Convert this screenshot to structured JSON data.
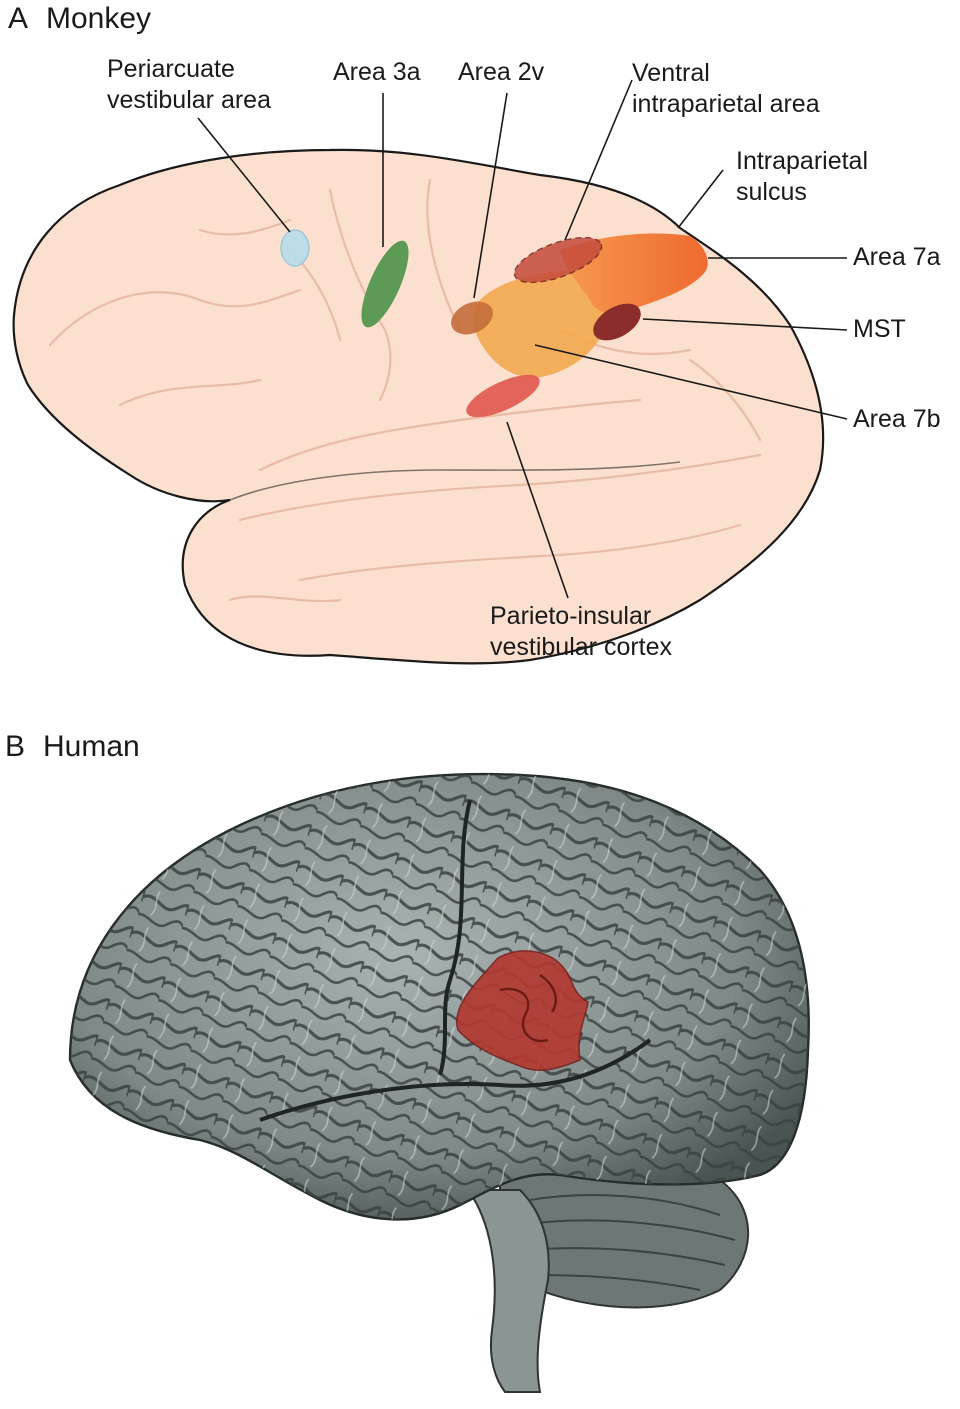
{
  "panel_a": {
    "letter": "A",
    "title": "Monkey",
    "labels": {
      "periarcuate": [
        "Periarcuate",
        "vestibular area"
      ],
      "area3a": "Area 3a",
      "area2v": "Area 2v",
      "ventral_ip": [
        "Ventral",
        "intraparietal area"
      ],
      "ip_sulcus": [
        "Intraparietal",
        "sulcus"
      ],
      "area7a": "Area 7a",
      "mst": "MST",
      "area7b": "Area 7b",
      "pivc": [
        "Parieto-insular",
        "vestibular cortex"
      ]
    }
  },
  "panel_b": {
    "letter": "B",
    "title": "Human"
  },
  "colors": {
    "monkey_brain": "#fbe0cf",
    "periarcuate": "#b9dce9",
    "area3a": "#5d9a55",
    "area2v": "#c46d3a",
    "area7a": "#f0773a",
    "area7b": "#f2a94e",
    "ventral_ip": "#c64b3c",
    "mst": "#8a2d2b",
    "pivc": "#e0574c",
    "human_brain": "#8f9a98",
    "human_region": "#b23a32"
  }
}
